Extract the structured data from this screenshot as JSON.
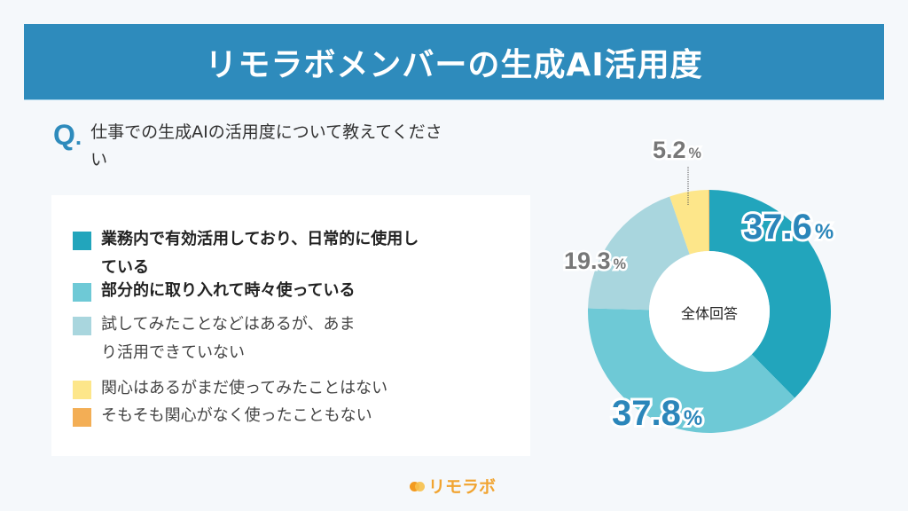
{
  "header": {
    "title": "リモラボメンバーの生成AI活用度"
  },
  "question": {
    "mark": "Q",
    "mark_dot": ".",
    "text": "仕事での生成AIの活用度について教えてください"
  },
  "legend": {
    "items": [
      {
        "label": "業務内で有効活用しており、日常的に使用している",
        "color": "#22a5bc",
        "bold": true
      },
      {
        "label": "部分的に取り入れて時々使っている",
        "color": "#6ec9d6",
        "bold": true
      },
      {
        "label": "試してみたことなどはあるが、あまり活用できていない",
        "color": "#a9d6de",
        "bold": false
      },
      {
        "label": "関心はあるがまだ使ってみたことはない",
        "color": "#fde68a",
        "bold": false
      },
      {
        "label": "そもそも関心がなく使ったこともない",
        "color": "#f3ae55",
        "bold": false
      }
    ]
  },
  "chart": {
    "center_label": "全体回答",
    "labels": {
      "a": "37.6",
      "b": "37.8",
      "c": "19.3",
      "d": "5.2",
      "unit": "%"
    }
  },
  "footer": {
    "logo_text": "リモラボ",
    "logo_colors": [
      "#f39a1e",
      "#f7c04a"
    ]
  },
  "chart_data": {
    "type": "pie",
    "subtype": "donut",
    "title": "リモラボメンバーの生成AI活用度",
    "subtitle": "仕事での生成AIの活用度について教えてください",
    "center_label": "全体回答",
    "categories": [
      "業務内で有効活用しており、日常的に使用している",
      "部分的に取り入れて時々使っている",
      "試してみたことなどはあるが、あまり活用できていない",
      "関心はあるがまだ使ってみたことはない",
      "そもそも関心がなく使ったこともない"
    ],
    "values": [
      37.6,
      37.8,
      19.3,
      5.2,
      0.1
    ],
    "unit": "%",
    "colors": [
      "#22a5bc",
      "#6ec9d6",
      "#a9d6de",
      "#fde68a",
      "#f3ae55"
    ],
    "start_angle": "12 o'clock, clockwise",
    "legend_position": "left"
  }
}
